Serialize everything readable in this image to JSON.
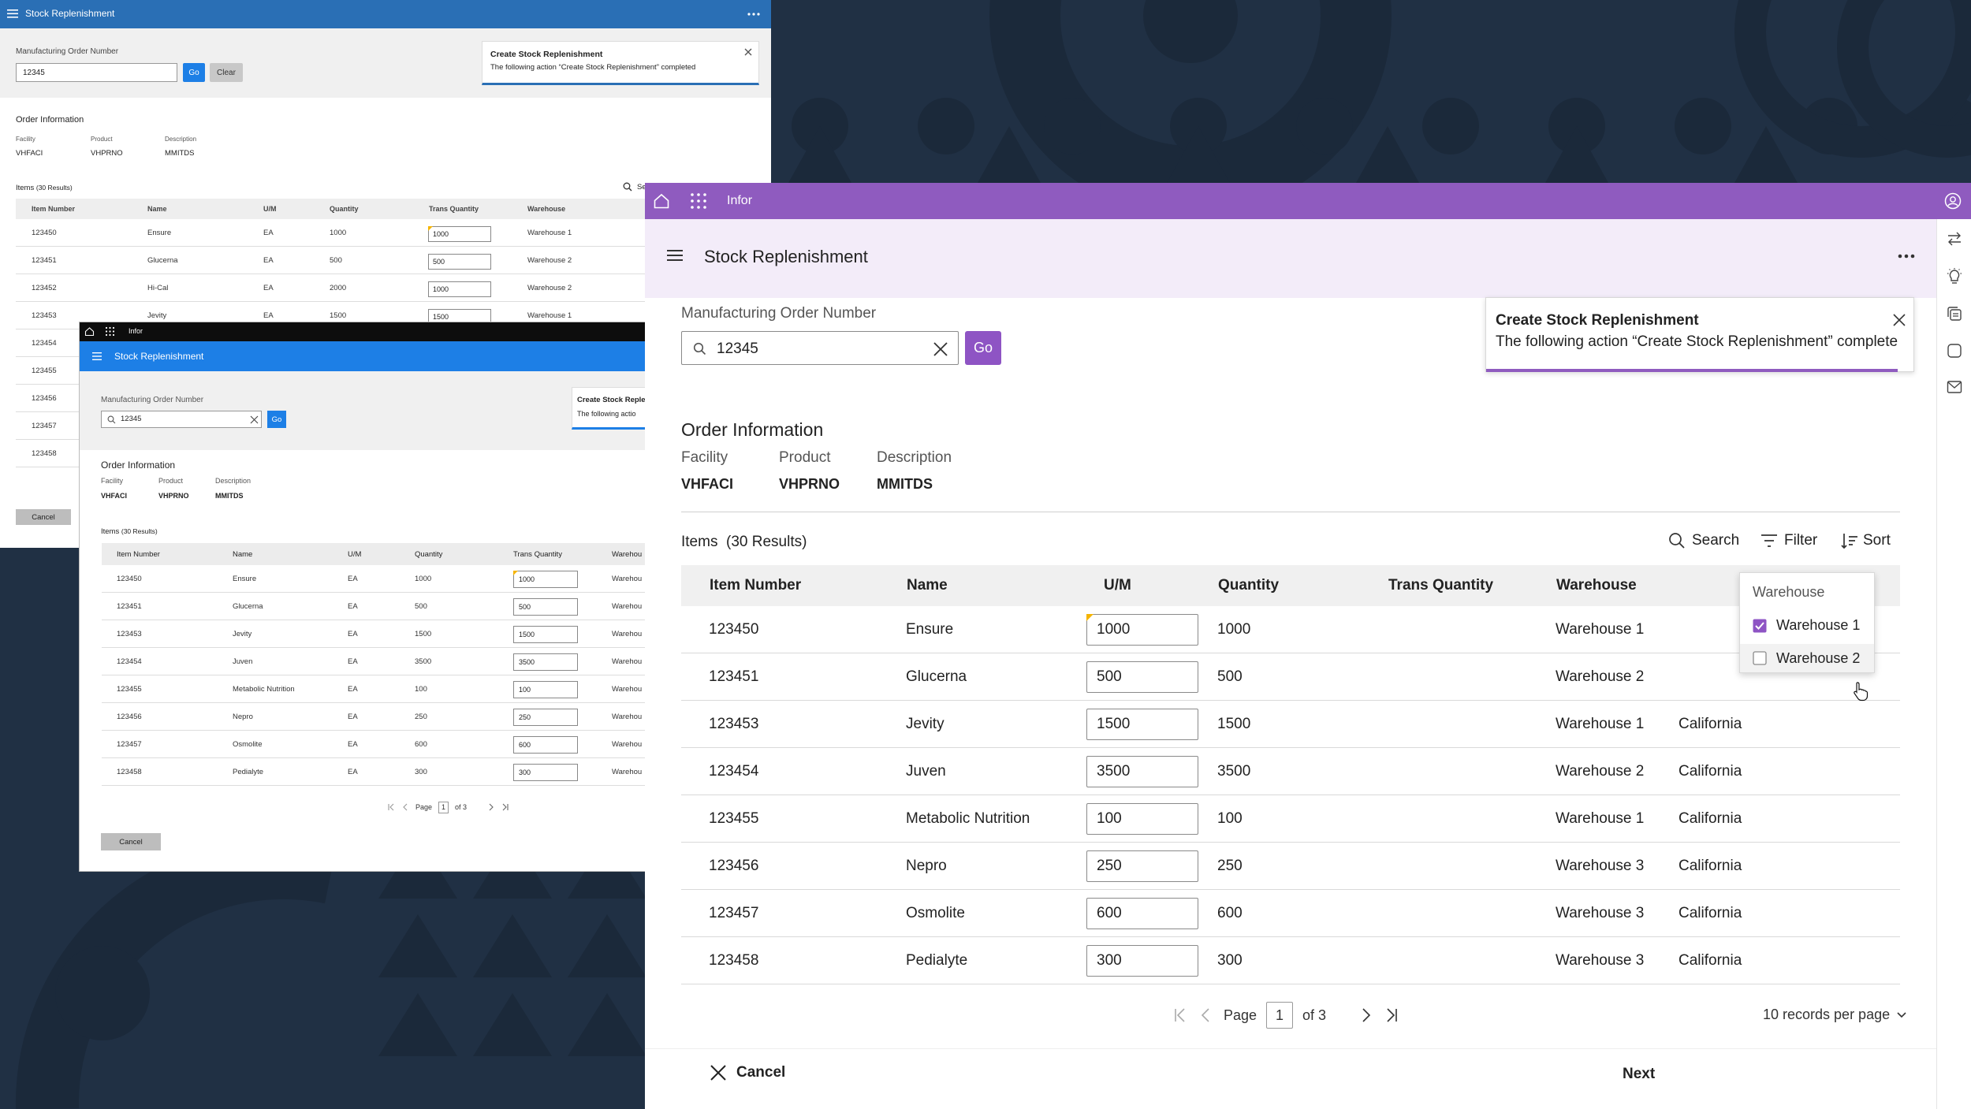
{
  "app_title": "Stock Replenishment",
  "brand": "Infor",
  "form": {
    "order_label": "Manufacturing Order Number",
    "order_value": "12345",
    "go": "Go",
    "clear": "Clear"
  },
  "toast": {
    "title": "Create Stock Replenishment",
    "message": "The following action “Create Stock Replenishment” completed",
    "message_short": "The following actio",
    "title_short": "Create Stock Reple"
  },
  "order_info": {
    "heading": "Order Information",
    "fields": [
      {
        "label": "Facility",
        "value": "VHFACI"
      },
      {
        "label": "Product",
        "value": "VHPRNO"
      },
      {
        "label": "Description",
        "value": "MMITDS"
      }
    ]
  },
  "items": {
    "label": "Items",
    "count": "(30 Results)",
    "search": "Search",
    "search_short": "Se",
    "filter": "Filter",
    "sort": "Sort",
    "columns": [
      "Item Number",
      "Name",
      "U/M",
      "Quantity",
      "Trans Quantity",
      "Warehouse"
    ],
    "warehouse_short": "Warehou"
  },
  "rows_main": [
    {
      "item": "123450",
      "name": "Ensure",
      "um": "EA",
      "qty": "1000",
      "trans": "1000",
      "warehouse": "Warehouse 1",
      "location": ""
    },
    {
      "item": "123451",
      "name": "Glucerna",
      "um": "EA",
      "qty": "500",
      "trans": "500",
      "warehouse": "Warehouse 2",
      "location": ""
    },
    {
      "item": "123453",
      "name": "Jevity",
      "um": "EA",
      "qty": "1500",
      "trans": "1500",
      "warehouse": "Warehouse 1",
      "location": "California"
    },
    {
      "item": "123454",
      "name": "Juven",
      "um": "EA",
      "qty": "3500",
      "trans": "3500",
      "warehouse": "Warehouse 2",
      "location": "California"
    },
    {
      "item": "123455",
      "name": "Metabolic Nutrition",
      "um": "EA",
      "qty": "100",
      "trans": "100",
      "warehouse": "Warehouse 1",
      "location": "California"
    },
    {
      "item": "123456",
      "name": "Nepro",
      "um": "EA",
      "qty": "250",
      "trans": "250",
      "warehouse": "Warehouse 3",
      "location": "California"
    },
    {
      "item": "123457",
      "name": "Osmolite",
      "um": "EA",
      "qty": "600",
      "trans": "600",
      "warehouse": "Warehouse 3",
      "location": "California"
    },
    {
      "item": "123458",
      "name": "Pedialyte",
      "um": "EA",
      "qty": "300",
      "trans": "300",
      "warehouse": "Warehouse 3",
      "location": "California"
    }
  ],
  "rows_back": [
    {
      "item": "123450",
      "name": "Ensure",
      "um": "EA",
      "qty": "1000",
      "trans": "1000",
      "warehouse": "Warehouse 1"
    },
    {
      "item": "123451",
      "name": "Glucerna",
      "um": "EA",
      "qty": "500",
      "trans": "500",
      "warehouse": "Warehouse 2"
    },
    {
      "item": "123452",
      "name": "Hi-Cal",
      "um": "EA",
      "qty": "2000",
      "trans": "1000",
      "warehouse": "Warehouse 2"
    },
    {
      "item": "123453",
      "name": "Jevity",
      "um": "EA",
      "qty": "1500",
      "trans": "1500",
      "warehouse": "Warehouse 1"
    }
  ],
  "back_items_more": [
    "123454",
    "123455",
    "123456",
    "123457",
    "123458"
  ],
  "filter_menu": {
    "title": "Warehouse",
    "options": [
      {
        "label": "Warehouse 1",
        "checked": true
      },
      {
        "label": "Warehouse 2",
        "checked": false
      }
    ]
  },
  "pager": {
    "page_label": "Page",
    "page": "1",
    "of": "of 3",
    "per_page": "10 records per page"
  },
  "footer": {
    "cancel": "Cancel",
    "next": "Next"
  },
  "icons": [
    "menu-icon",
    "more-icon",
    "close-icon",
    "home-icon",
    "apps-icon",
    "user-icon",
    "search-icon",
    "filter-icon",
    "sort-icon",
    "swap-icon",
    "lightbulb-icon",
    "copy-icon",
    "chat-icon",
    "mail-icon",
    "first-page-icon",
    "prev-page-icon",
    "next-page-icon",
    "last-page-icon",
    "chevron-down-icon",
    "checkbox-icon",
    "pointer-cursor-icon"
  ],
  "colors": {
    "background": "#203044",
    "classic_header": "#2a6fb5",
    "classic_blue": "#1d7fe6",
    "infor_purple": "#8f5bbf",
    "light_purple": "#f3ecf9",
    "button_purple": "#8e54c4",
    "toast_underline": "#8f5bbf"
  }
}
